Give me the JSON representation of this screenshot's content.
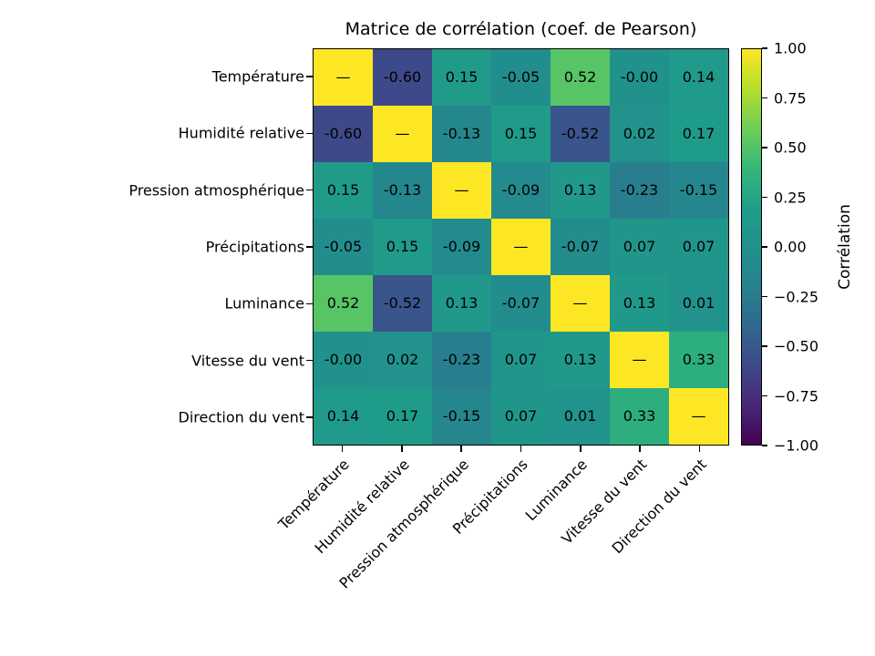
{
  "title": "Matrice de corrélation (coef. de Pearson)",
  "chart_data": {
    "type": "heatmap",
    "title": "Matrice de corrélation (coef. de Pearson)",
    "variables": [
      "Température",
      "Humidité relative",
      "Pression atmosphérique",
      "Précipitations",
      "Luminance",
      "Vitesse du vent",
      "Direction du vent"
    ],
    "matrix": [
      [
        1.0,
        -0.6,
        0.15,
        -0.05,
        0.52,
        -0.0,
        0.14
      ],
      [
        -0.6,
        1.0,
        -0.13,
        0.15,
        -0.52,
        0.02,
        0.17
      ],
      [
        0.15,
        -0.13,
        1.0,
        -0.09,
        0.13,
        -0.23,
        -0.15
      ],
      [
        -0.05,
        0.15,
        -0.09,
        1.0,
        -0.07,
        0.07,
        0.07
      ],
      [
        0.52,
        -0.52,
        0.13,
        -0.07,
        1.0,
        0.13,
        0.01
      ],
      [
        -0.0,
        0.02,
        -0.23,
        0.07,
        0.13,
        1.0,
        0.33
      ],
      [
        0.14,
        0.17,
        -0.15,
        0.07,
        0.01,
        0.33,
        1.0
      ]
    ],
    "cell_labels": [
      [
        "—",
        "-0.60",
        "0.15",
        "-0.05",
        "0.52",
        "-0.00",
        "0.14"
      ],
      [
        "-0.60",
        "—",
        "-0.13",
        "0.15",
        "-0.52",
        "0.02",
        "0.17"
      ],
      [
        "0.15",
        "-0.13",
        "—",
        "-0.09",
        "0.13",
        "-0.23",
        "-0.15"
      ],
      [
        "-0.05",
        "0.15",
        "-0.09",
        "—",
        "-0.07",
        "0.07",
        "0.07"
      ],
      [
        "0.52",
        "-0.52",
        "0.13",
        "-0.07",
        "—",
        "0.13",
        "0.01"
      ],
      [
        "-0.00",
        "0.02",
        "-0.23",
        "0.07",
        "0.13",
        "—",
        "0.33"
      ],
      [
        "0.14",
        "0.17",
        "-0.15",
        "0.07",
        "0.01",
        "0.33",
        "—"
      ]
    ],
    "colormap": "viridis",
    "value_range": [
      -1,
      1
    ],
    "grid": false,
    "colorbar": {
      "label": "Corrélation",
      "tick_labels": [
        "1.00",
        "0.75",
        "0.50",
        "0.25",
        "0.00",
        "−0.25",
        "−0.50",
        "−0.75",
        "−1.00"
      ],
      "tick_values": [
        1.0,
        0.75,
        0.5,
        0.25,
        0.0,
        -0.25,
        -0.5,
        -0.75,
        -1.0
      ]
    },
    "colors": {
      "background": "#ffffff",
      "text": "#000000",
      "diagonal_max": "#fde725",
      "min": "#440154"
    }
  }
}
